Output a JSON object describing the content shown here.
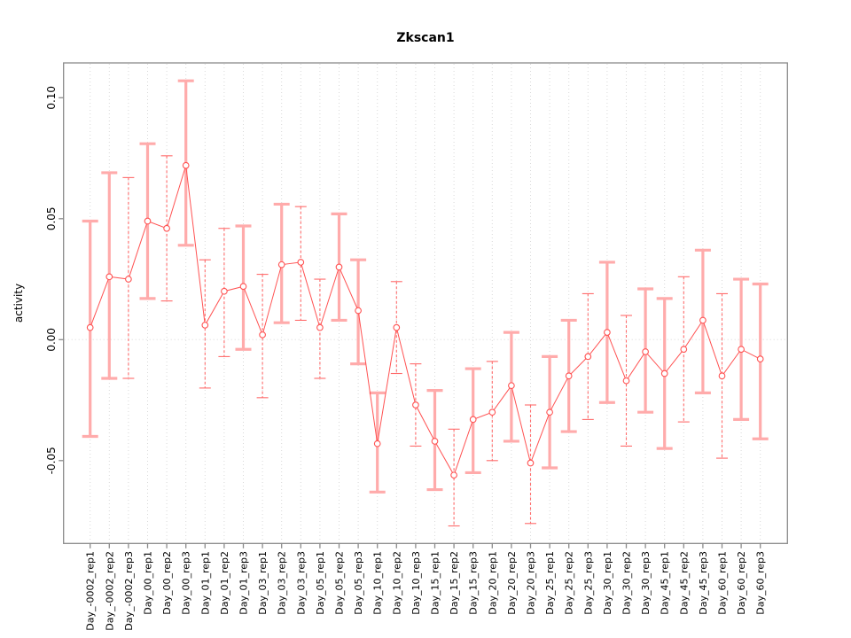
{
  "figure": {
    "title": "Zkscan1"
  },
  "chart_data": {
    "type": "line",
    "title": "Zkscan1",
    "xlabel": "",
    "ylabel": "activity",
    "ylim": [
      -0.0845,
      0.1145
    ],
    "yticks": [
      -0.05,
      0.0,
      0.05,
      0.1
    ],
    "ytick_labels": [
      "-0.05",
      "0.00",
      "0.05",
      "0.10"
    ],
    "grid": {
      "vertical": "dotted line at every category",
      "horizontal": "dotted line at y = 0 only"
    },
    "legend_position": "none",
    "marker": "open-circle",
    "colors": {
      "series": "#ff5252",
      "errorbar_solid": "#ffabab",
      "errorbar_dashed": "#ff6b6b",
      "gridline": "#d9d9d9",
      "box": "#8a8a8a",
      "text": "#000000",
      "background": "#ffffff"
    },
    "categories": [
      "Day_-0002_rep1",
      "Day_-0002_rep2",
      "Day_-0002_rep3",
      "Day_00_rep1",
      "Day_00_rep2",
      "Day_00_rep3",
      "Day_01_rep1",
      "Day_01_rep2",
      "Day_01_rep3",
      "Day_03_rep1",
      "Day_03_rep2",
      "Day_03_rep3",
      "Day_05_rep1",
      "Day_05_rep2",
      "Day_05_rep3",
      "Day_10_rep1",
      "Day_10_rep2",
      "Day_10_rep3",
      "Day_15_rep1",
      "Day_15_rep2",
      "Day_15_rep3",
      "Day_20_rep1",
      "Day_20_rep2",
      "Day_20_rep3",
      "Day_25_rep1",
      "Day_25_rep2",
      "Day_25_rep3",
      "Day_30_rep1",
      "Day_30_rep2",
      "Day_30_rep3",
      "Day_45_rep1",
      "Day_45_rep2",
      "Day_45_rep3",
      "Day_60_rep1",
      "Day_60_rep2",
      "Day_60_rep3"
    ],
    "series": [
      {
        "name": "activity",
        "values": [
          0.005,
          0.026,
          0.025,
          0.049,
          0.046,
          0.072,
          0.006,
          0.02,
          0.022,
          0.002,
          0.031,
          0.032,
          0.005,
          0.03,
          0.012,
          -0.043,
          0.005,
          -0.027,
          -0.042,
          -0.056,
          -0.033,
          -0.03,
          -0.019,
          -0.051,
          -0.03,
          -0.015,
          -0.007,
          0.003,
          -0.017,
          -0.005,
          -0.014,
          -0.004,
          0.008,
          -0.015,
          -0.004,
          -0.008
        ],
        "upper": [
          0.049,
          0.069,
          0.067,
          0.081,
          0.076,
          0.107,
          0.033,
          0.046,
          0.047,
          0.027,
          0.056,
          0.055,
          0.025,
          0.052,
          0.033,
          -0.022,
          0.024,
          -0.01,
          -0.021,
          -0.037,
          -0.012,
          -0.009,
          0.003,
          -0.027,
          -0.007,
          0.008,
          0.019,
          0.032,
          0.01,
          0.021,
          0.017,
          0.026,
          0.037,
          0.019,
          0.025,
          0.023
        ],
        "lower": [
          -0.04,
          -0.016,
          -0.016,
          0.017,
          0.016,
          0.039,
          -0.02,
          -0.007,
          -0.004,
          -0.024,
          0.007,
          0.008,
          -0.016,
          0.008,
          -0.01,
          -0.063,
          -0.014,
          -0.044,
          -0.062,
          -0.077,
          -0.055,
          -0.05,
          -0.042,
          -0.076,
          -0.053,
          -0.038,
          -0.033,
          -0.026,
          -0.044,
          -0.03,
          -0.045,
          -0.034,
          -0.022,
          -0.049,
          -0.033,
          -0.041
        ],
        "bar_styles": [
          "solid",
          "solid",
          "dashed",
          "solid",
          "dashed",
          "solid",
          "dashed",
          "dashed",
          "solid",
          "dashed",
          "solid",
          "dashed",
          "dashed",
          "solid",
          "solid",
          "solid",
          "dashed",
          "dashed",
          "solid",
          "dashed",
          "solid",
          "dashed",
          "solid",
          "dashed",
          "solid",
          "solid",
          "dashed",
          "solid",
          "dashed",
          "solid",
          "solid",
          "dashed",
          "solid",
          "dashed",
          "solid",
          "solid"
        ]
      }
    ]
  }
}
